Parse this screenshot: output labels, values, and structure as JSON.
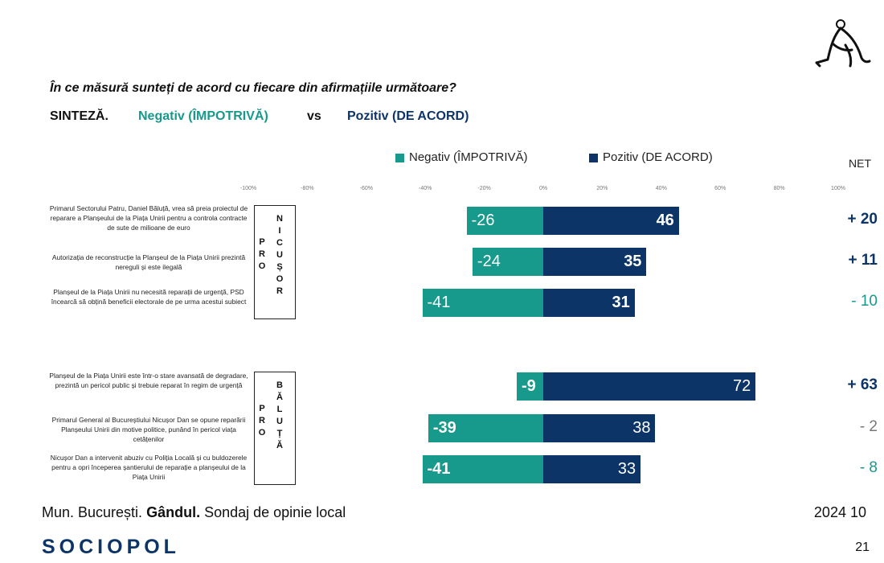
{
  "header": {
    "question": "În ce măsură sunteți de acord cu fiecare din afirmațiile următoare?",
    "synthesis_label": "SINTEZĂ.",
    "negative_label": "Negativ (ÎMPOTRIVĂ)",
    "vs_label": "vs",
    "positive_label": "Pozitiv (DE ACORD)"
  },
  "colors": {
    "negative": "#17998c",
    "positive": "#0d3466",
    "net_positive": "#0d3466",
    "net_negative": "#17998c",
    "net_neutral": "#777777"
  },
  "chart_data": {
    "type": "bar",
    "orientation": "horizontal-diverging",
    "legend": [
      "Negativ (ÎMPOTRIVĂ)",
      "Pozitiv (DE ACORD)"
    ],
    "net_header": "NET",
    "x_ticks": [
      "-100%",
      "-80%",
      "-60%",
      "-40%",
      "-20%",
      "0%",
      "20%",
      "40%",
      "60%",
      "80%",
      "100%"
    ],
    "xlim": [
      -100,
      100
    ],
    "groups": [
      {
        "label": "PRO NICUȘOR",
        "label_left": "PRO",
        "label_right": "NICUȘOR",
        "rows": [
          {
            "statement": "Primarul Sectorului Patru, Daniel Băluță, vrea să preia proiectul de reparare a Planșeului de la Piața Unirii pentru a controla contracte de sute de milioane de euro",
            "negative": -26,
            "positive": 46,
            "net": "+ 20",
            "net_sign": "positive",
            "neg_bold": false,
            "pos_bold": true
          },
          {
            "statement": "Autorizația de reconstrucție la Planșeul de la Piața Unirii prezintă nereguli și este ilegală",
            "negative": -24,
            "positive": 35,
            "net": "+ 11",
            "net_sign": "positive",
            "neg_bold": false,
            "pos_bold": true
          },
          {
            "statement": "Planșeul de la Piața Unirii nu necesită reparații de urgență, PSD încearcă să obțină beneficii electorale de pe urma acestui subiect",
            "negative": -41,
            "positive": 31,
            "net": "- 10",
            "net_sign": "negative",
            "neg_bold": false,
            "pos_bold": true
          }
        ]
      },
      {
        "label": "PRO BĂLUȚĂ",
        "label_left": "PRO",
        "label_right": "BĂLUȚĂ",
        "rows": [
          {
            "statement": "Planșeul de la Piața Unirii este într-o stare avansată de degradare, prezintă un pericol public și trebuie reparat în regim de urgență",
            "negative": -9,
            "positive": 72,
            "net": "+ 63",
            "net_sign": "positive",
            "neg_bold": true,
            "pos_bold": false
          },
          {
            "statement": "Primarul General al Bucureștiului Nicușor Dan se opune reparării Planșeului Unirii din motive politice, punând în pericol viața cetățenilor",
            "negative": -39,
            "positive": 38,
            "net": "- 2",
            "net_sign": "neutral",
            "neg_bold": true,
            "pos_bold": false
          },
          {
            "statement": "Nicușor Dan a intervenit abuziv cu Poliția Locală și cu buldozerele pentru a opri începerea șantierului de reparație a planșeului de la Piața Unirii",
            "negative": -41,
            "positive": 33,
            "net": "- 8",
            "net_sign": "negative",
            "neg_bold": true,
            "pos_bold": false
          }
        ]
      }
    ]
  },
  "footer": {
    "location": "Mun. București.",
    "publication": "Gândul.",
    "description": "Sondaj de opinie local",
    "date": "2024 10",
    "brand": "SOCIOPOL",
    "page_number": "21"
  }
}
